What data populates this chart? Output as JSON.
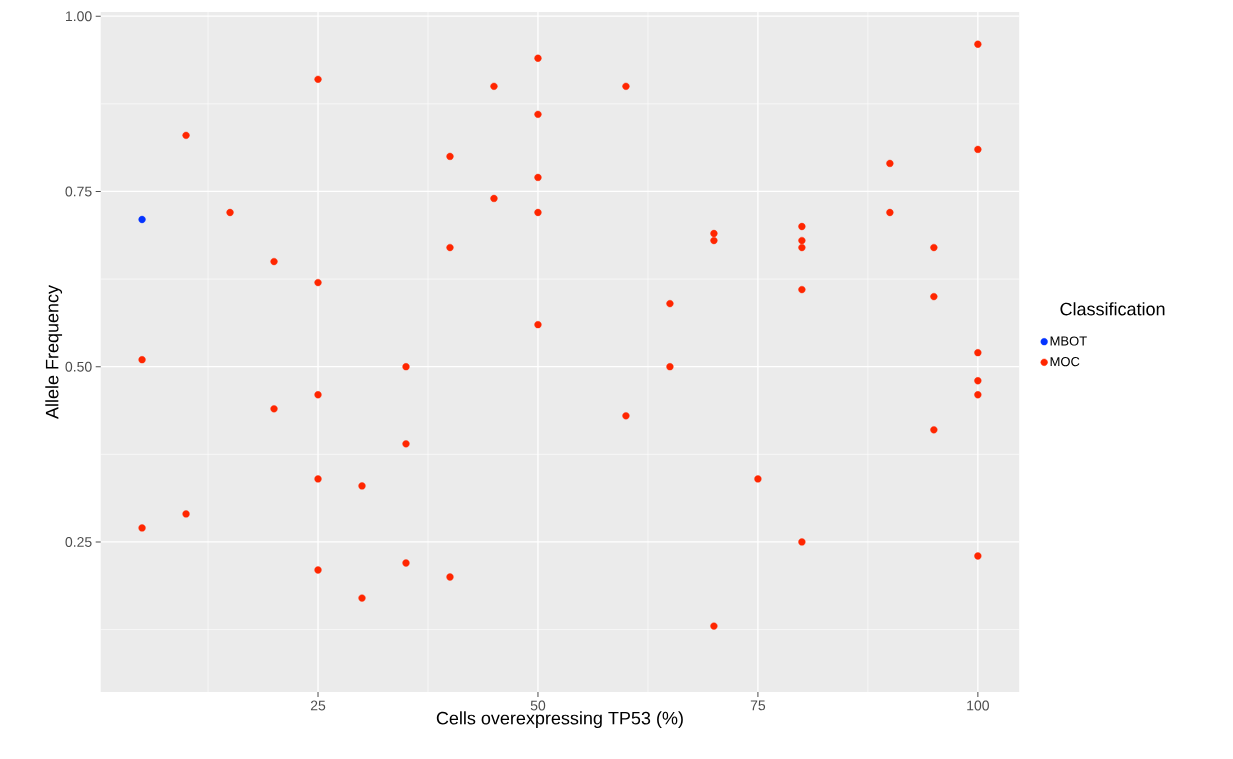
{
  "chart_data": {
    "type": "scatter",
    "xlabel": "Cells overexpressing TP53 (%)",
    "ylabel": "Allele Frequency",
    "legend_title": "Classification",
    "xlim": [
      0.3,
      104.7
    ],
    "ylim": [
      0.036,
      1.006
    ],
    "xticks": [
      25,
      50,
      75,
      100
    ],
    "yticks": [
      {
        "value": 0.25,
        "label": "0.25"
      },
      {
        "value": 0.5,
        "label": "0.50"
      },
      {
        "value": 0.75,
        "label": "0.75"
      },
      {
        "value": 1,
        "label": "1.00"
      }
    ],
    "grid": true,
    "legend": "right",
    "marker": "circle",
    "series": [
      {
        "name": "MBOT",
        "color": "#0433ff",
        "x": [
          5
        ],
        "values": [
          0.71
        ]
      },
      {
        "name": "MOC",
        "color": "#ff2600",
        "x": [
          5,
          5,
          10,
          10,
          15,
          20,
          20,
          25,
          25,
          25,
          25,
          25,
          30,
          30,
          35,
          35,
          35,
          40,
          40,
          40,
          45,
          45,
          50,
          50,
          50,
          50,
          50,
          60,
          60,
          65,
          65,
          70,
          70,
          70,
          75,
          80,
          80,
          80,
          80,
          80,
          90,
          90,
          95,
          95,
          95,
          100,
          100,
          100,
          100,
          100,
          100
        ],
        "values": [
          0.51,
          0.27,
          0.83,
          0.29,
          0.72,
          0.65,
          0.44,
          0.91,
          0.62,
          0.46,
          0.34,
          0.21,
          0.33,
          0.17,
          0.5,
          0.39,
          0.22,
          0.8,
          0.67,
          0.2,
          0.9,
          0.74,
          0.94,
          0.86,
          0.77,
          0.72,
          0.56,
          0.9,
          0.43,
          0.59,
          0.5,
          0.69,
          0.68,
          0.13,
          0.34,
          0.7,
          0.68,
          0.67,
          0.61,
          0.25,
          0.79,
          0.72,
          0.67,
          0.6,
          0.41,
          0.96,
          0.81,
          0.52,
          0.48,
          0.46,
          0.23
        ]
      }
    ]
  }
}
